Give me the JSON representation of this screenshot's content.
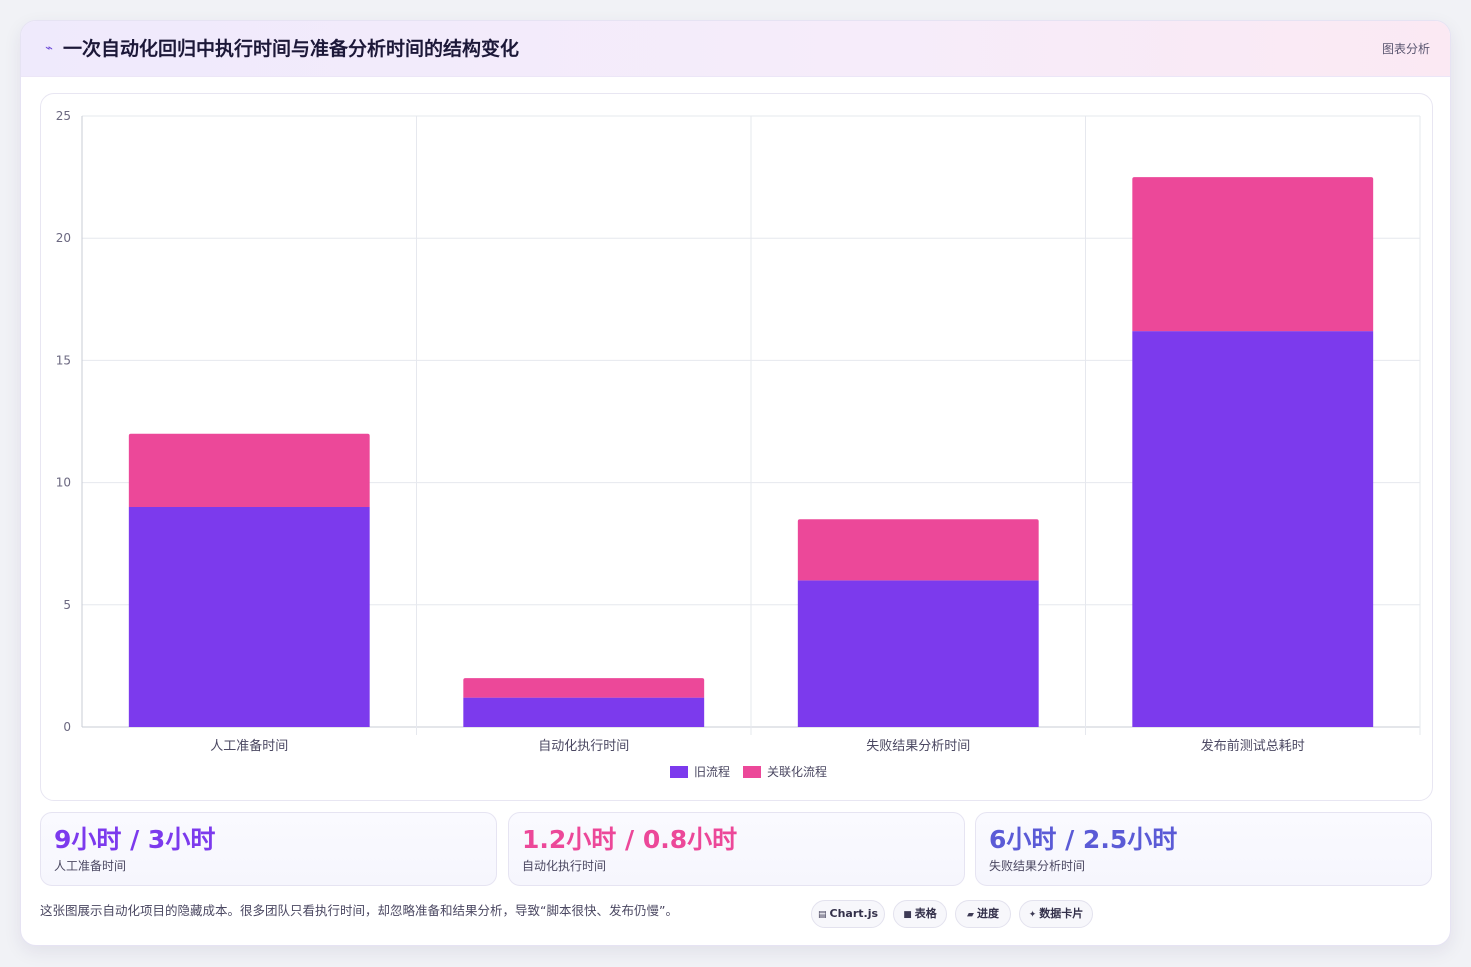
{
  "header": {
    "title": "一次自动化回归中执行时间与准备分析时间的结构变化",
    "tag": "图表分析"
  },
  "chart_data": {
    "type": "bar",
    "stacked": true,
    "categories": [
      "人工准备时间",
      "自动化执行时间",
      "失败结果分析时间",
      "发布前测试总耗时"
    ],
    "series": [
      {
        "name": "旧流程",
        "color": "#7c3aed",
        "values": [
          9,
          1.2,
          6,
          16.2
        ]
      },
      {
        "name": "关联化流程",
        "color": "#ec4899",
        "values": [
          3,
          0.8,
          2.5,
          6.3
        ]
      }
    ],
    "ylim": [
      0,
      25
    ],
    "yticks": [
      0,
      5,
      10,
      15,
      20,
      25
    ],
    "grid": true,
    "legend": "bottom"
  },
  "stats": [
    {
      "value": "9小时 / 3小时",
      "label": "人工准备时间",
      "color": "#7c3aed"
    },
    {
      "value": "1.2小时 / 0.8小时",
      "label": "自动化执行时间",
      "color": "#ec4899"
    },
    {
      "value": "6小时 / 2.5小时",
      "label": "失败结果分析时间",
      "color": "#5b5bd6"
    }
  ],
  "footer": {
    "note": "这张图展示自动化项目的隐藏成本。很多团队只看执行时间，却忽略准备和结果分析，导致“脚本很快、发布仍慢”。"
  },
  "pills": [
    {
      "icon": "▤",
      "icon_name": "chart-icon",
      "label": "Chart.js"
    },
    {
      "icon": "■",
      "icon_name": "table-icon",
      "label": "表格"
    },
    {
      "icon": "▰",
      "icon_name": "progress-icon",
      "label": "进度"
    },
    {
      "icon": "✦",
      "icon_name": "card-icon",
      "label": "数据卡片"
    }
  ]
}
